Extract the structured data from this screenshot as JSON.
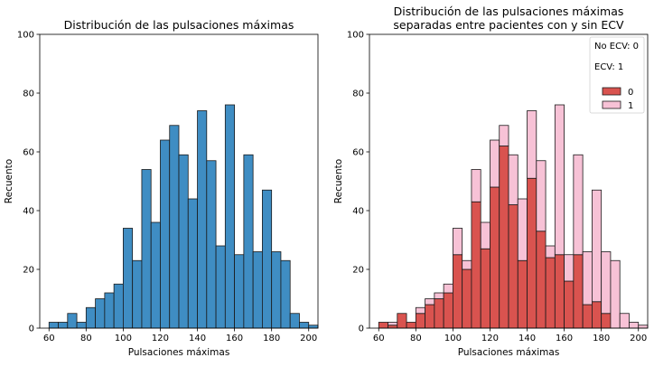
{
  "chart_data": [
    {
      "type": "bar",
      "title": "Distribución de las pulsaciones máximas",
      "xlabel": "Pulsaciones máximas",
      "ylabel": "Recuento",
      "xlim": [
        55,
        205
      ],
      "ylim": [
        0,
        100
      ],
      "xticks": [
        60,
        80,
        100,
        120,
        140,
        160,
        180,
        200
      ],
      "yticks": [
        0,
        20,
        40,
        60,
        80,
        100
      ],
      "bin_width": 5,
      "bin_starts": [
        60,
        65,
        70,
        75,
        80,
        85,
        90,
        95,
        100,
        105,
        110,
        115,
        120,
        125,
        130,
        135,
        140,
        145,
        150,
        155,
        160,
        165,
        170,
        175,
        180,
        185,
        190,
        195,
        200
      ],
      "values": [
        2,
        2,
        5,
        2,
        7,
        10,
        12,
        15,
        34,
        23,
        54,
        36,
        64,
        69,
        59,
        44,
        74,
        57,
        28,
        76,
        25,
        59,
        26,
        47,
        26,
        23,
        5,
        2,
        1
      ],
      "colors": {
        "bar": "#3f8dc3",
        "edge": "#1a1a1a"
      }
    },
    {
      "type": "bar",
      "stacked": true,
      "title": [
        "Distribución de las pulsaciones máximas",
        "separadas entre pacientes con y sin ECV"
      ],
      "xlabel": "Pulsaciones máximas",
      "ylabel": "Recuento",
      "xlim": [
        55,
        205
      ],
      "ylim": [
        0,
        100
      ],
      "xticks": [
        60,
        80,
        100,
        120,
        140,
        160,
        180,
        200
      ],
      "yticks": [
        0,
        20,
        40,
        60,
        80,
        100
      ],
      "bin_width": 5,
      "bin_starts": [
        60,
        65,
        70,
        75,
        80,
        85,
        90,
        95,
        100,
        105,
        110,
        115,
        120,
        125,
        130,
        135,
        140,
        145,
        150,
        155,
        160,
        165,
        170,
        175,
        180,
        185,
        190,
        195,
        200
      ],
      "series": [
        {
          "name": "0",
          "color": "#d9534f",
          "values": [
            2,
            1,
            5,
            2,
            5,
            8,
            10,
            12,
            25,
            20,
            43,
            27,
            48,
            62,
            42,
            23,
            51,
            33,
            24,
            25,
            16,
            25,
            8,
            9,
            5,
            0,
            0,
            0,
            0
          ]
        },
        {
          "name": "1",
          "color": "#f7c2d6",
          "values": [
            0,
            1,
            0,
            0,
            2,
            2,
            2,
            3,
            9,
            3,
            11,
            9,
            16,
            7,
            17,
            21,
            23,
            24,
            4,
            51,
            9,
            34,
            18,
            38,
            21,
            23,
            5,
            2,
            1
          ]
        }
      ],
      "legend": {
        "placement": "top-right",
        "notes": [
          "No ECV: 0",
          "ECV: 1"
        ],
        "entries": [
          "0",
          "1"
        ]
      }
    }
  ]
}
